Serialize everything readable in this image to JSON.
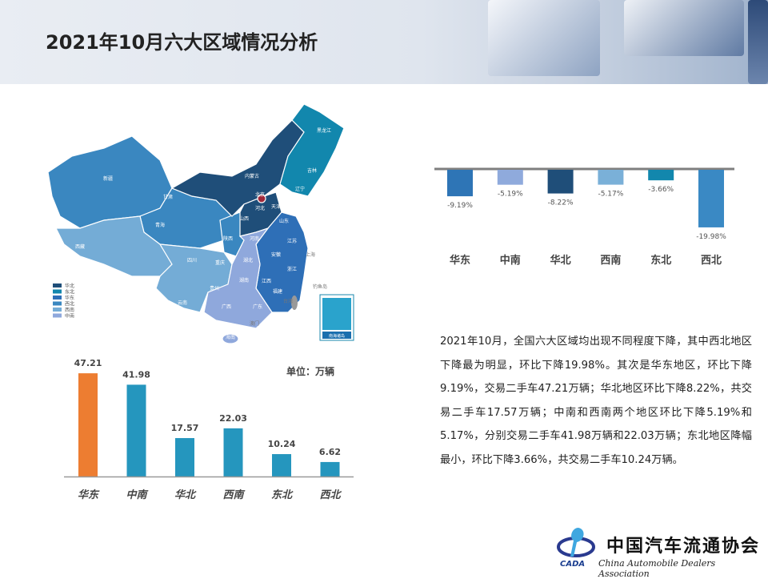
{
  "header": {
    "title": "2021年10月六大区域情况分析"
  },
  "map": {
    "legend": [
      {
        "label": "华北",
        "color": "#1f4e79"
      },
      {
        "label": "东北",
        "color": "#1287ad"
      },
      {
        "label": "华东",
        "color": "#2e6fb7"
      },
      {
        "label": "西北",
        "color": "#3a87c0"
      },
      {
        "label": "西南",
        "color": "#74acd6"
      },
      {
        "label": "中南",
        "color": "#8fa8dc"
      }
    ],
    "labels": [
      "新疆",
      "西藏",
      "青海",
      "甘肃",
      "内蒙古",
      "黑龙江",
      "吉林",
      "辽宁",
      "北京",
      "天津",
      "河北",
      "山西",
      "陕西",
      "山东",
      "河南",
      "江苏",
      "安徽",
      "上海",
      "湖北",
      "四川",
      "重庆",
      "浙江",
      "湖南",
      "江西",
      "贵州",
      "云南",
      "福建",
      "广西",
      "广东",
      "台湾",
      "海南",
      "澳门",
      "钓鱼岛",
      "南海诸岛"
    ]
  },
  "mom_chart": {
    "type": "bar",
    "categories": [
      "华东",
      "中南",
      "华北",
      "西南",
      "东北",
      "西北"
    ],
    "values": [
      -9.19,
      -5.19,
      -8.22,
      -5.17,
      -3.66,
      -19.98
    ],
    "value_labels": [
      "-9.19%",
      "-5.19%",
      "-8.22%",
      "-5.17%",
      "-3.66%",
      "-19.98%"
    ],
    "colors": [
      "#2e75b6",
      "#8faadc",
      "#1f4e79",
      "#7ab0d8",
      "#1287ad",
      "#3a89c4"
    ]
  },
  "chart_data": {
    "type": "bar",
    "categories": [
      "华东",
      "中南",
      "华北",
      "西南",
      "东北",
      "西北"
    ],
    "values": [
      47.21,
      41.98,
      17.57,
      22.03,
      10.24,
      6.62
    ],
    "value_labels": [
      "47.21",
      "41.98",
      "17.57",
      "22.03",
      "10.24",
      "6.62"
    ],
    "unit": "单位：万辆",
    "colors": [
      "#ed7d31",
      "#2596be",
      "#2596be",
      "#2596be",
      "#2596be",
      "#2596be"
    ]
  },
  "text": {
    "paragraph": "2021年10月，全国六大区域均出现不同程度下降，其中西北地区下降最为明显，环比下降19.98%。其次是华东地区，环比下降9.19%，交易二手车47.21万辆；华北地区环比下降8.22%，共交易二手车17.57万辆；中南和西南两个地区环比下降5.19%和5.17%，分别交易二手车41.98万辆和22.03万辆；东北地区降幅最小，环比下降3.66%，共交易二手车10.24万辆。"
  },
  "logo": {
    "cn": "中国汽车流通协会",
    "en": "China Automobile Dealers Association",
    "abbr": "CADA"
  }
}
